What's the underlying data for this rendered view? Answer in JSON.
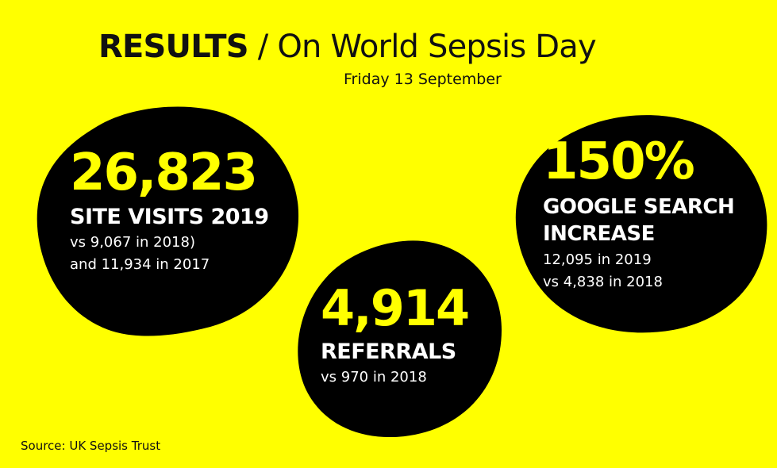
{
  "header": {
    "title_bold": "RESULTS",
    "title_separator": "/",
    "title_rest": "On World Sepsis Day",
    "date": "Friday 13 September"
  },
  "stats": [
    {
      "number": "26,823",
      "label": "SITE VISITS 2019",
      "detail1": "vs 9,067 in 2018)",
      "detail2": "and 11,934 in 2017"
    },
    {
      "number": "4,914",
      "label": "REFERRALS",
      "detail1": "vs 970 in 2018"
    },
    {
      "number": "150%",
      "label1": "GOOGLE SEARCH",
      "label2": "INCREASE",
      "detail1": "12,095 in 2019",
      "detail2": "vs 4,838 in 2018"
    }
  ],
  "footer": {
    "source": "Source: UK Sepsis Trust"
  },
  "colors": {
    "background": "#ffff00",
    "blob": "#000000",
    "highlight": "#ffff00",
    "text_light": "#ffffff",
    "text_dark": "#111111"
  }
}
